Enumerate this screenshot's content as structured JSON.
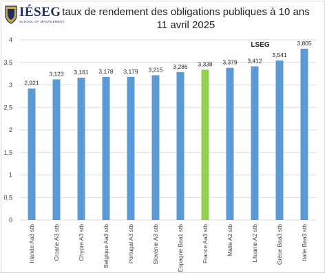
{
  "header": {
    "logo_text": "IÉSEG",
    "logo_subtitle": "SCHOOL OF MANAGEMENT",
    "title_line1": "taux de rendement des obligations publiques à 10 ans",
    "title_line2": "11 avril 2025"
  },
  "chart_data": {
    "type": "bar",
    "title": "taux de rendement des obligations publiques à 10 ans",
    "subtitle": "11 avril 2025",
    "source_label": "LSEG",
    "categories": [
      "Irlande Aa3 stb",
      "Croatie A3 stb",
      "Chypre A3 stb",
      "Belgique Aa3 stb",
      "Portugal A3 stb",
      "Slovénie A3 stb",
      "Espagne Baa1 stb",
      "France Aa3 stb",
      "Malte A2 stb",
      "Lituanie A2 stb",
      "Grèce Baa3 stb",
      "Italie Baa3 stb"
    ],
    "values": [
      2.921,
      3.123,
      3.161,
      3.178,
      3.179,
      3.215,
      3.286,
      3.338,
      3.379,
      3.412,
      3.541,
      3.805
    ],
    "value_labels": [
      "2,921",
      "3,123",
      "3,161",
      "3,178",
      "3,179",
      "3,215",
      "3,286",
      "3,338",
      "3,379",
      "3,412",
      "3,541",
      "3,805"
    ],
    "ylim": [
      0,
      4
    ],
    "yticks": [
      0,
      0.5,
      1,
      1.5,
      2,
      2.5,
      3,
      3.5,
      4
    ],
    "ytick_labels": [
      "0",
      "0,5",
      "1",
      "1,5",
      "2",
      "2,5",
      "3",
      "3,5",
      "4"
    ],
    "grid": true,
    "bar_color": "#5b9bd5",
    "highlight_category": "France Aa3 stb",
    "highlight_color": "#92d050",
    "grid_color": "#d9d9d9",
    "text_color": "#404040"
  }
}
